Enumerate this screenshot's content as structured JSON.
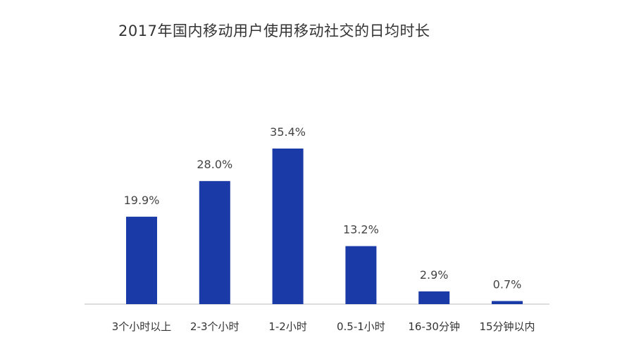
{
  "chart_data": {
    "type": "bar",
    "title": "2017年国内移动用户使用移动社交的日均时长",
    "xlabel": "",
    "ylabel": "",
    "categories": [
      "3个小时以上",
      "2-3个小时",
      "1-2小时",
      "0.5-1小时",
      "16-30分钟",
      "15分钟以内"
    ],
    "values": [
      19.9,
      28.0,
      35.4,
      13.2,
      2.9,
      0.7
    ],
    "value_labels": [
      "19.9%",
      "28.0%",
      "35.4%",
      "13.2%",
      "2.9%",
      "0.7%"
    ],
    "ylim": [
      0,
      35.4
    ],
    "grid": false,
    "legend": "none",
    "colors": {
      "bar": "#1a3aa8",
      "axis": "#bbbbbb"
    }
  }
}
